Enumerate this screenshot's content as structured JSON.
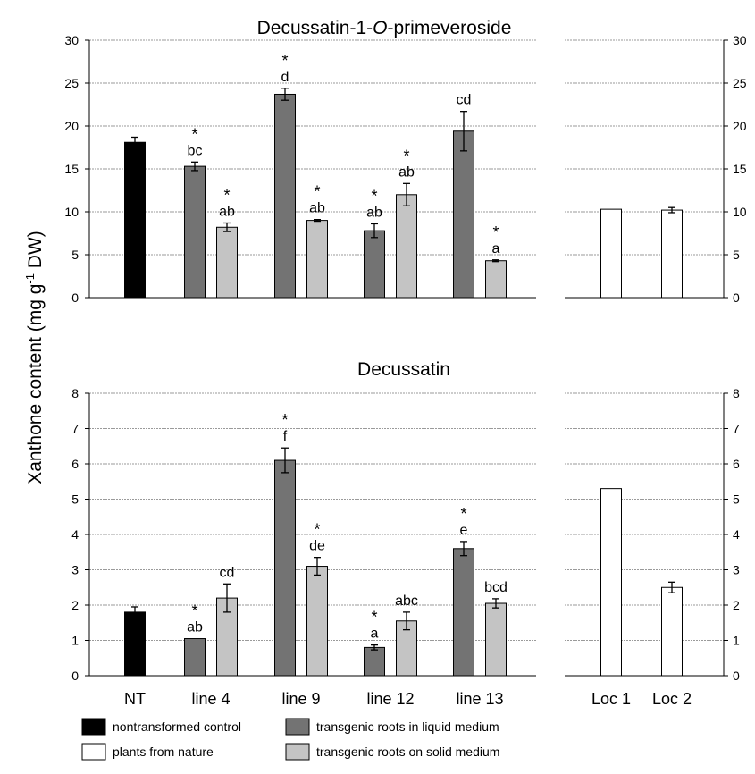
{
  "ylabel_main": "Xanthone content (mg g",
  "ylabel_sup": "-1",
  "ylabel_tail": " DW)",
  "title_top_prefix": "Decussatin-1-",
  "title_top_italic": "O",
  "title_top_suffix": "-primeveroside",
  "legend": [
    {
      "key": "nontransformed",
      "label": "nontransformed control",
      "color": "#000000"
    },
    {
      "key": "nature",
      "label": "plants from nature",
      "color": "#ffffff"
    },
    {
      "key": "liquid",
      "label": "transgenic roots in liquid medium",
      "color": "#737373"
    },
    {
      "key": "solid",
      "label": "transgenic roots on solid medium",
      "color": "#c4c4c4"
    }
  ],
  "chart_data": [
    {
      "type": "bar",
      "title": "Decussatin-1-O-primeveroside",
      "ylim": [
        0,
        30
      ],
      "yticks": [
        "0",
        "5",
        "10",
        "15",
        "20",
        "25",
        "30"
      ],
      "grid": true,
      "categories": [
        "NT",
        "line 4",
        "line 9",
        "line 12",
        "line 13"
      ],
      "nature_categories": [
        "Loc 1",
        "Loc 2"
      ],
      "bars": [
        {
          "group": "NT",
          "series": "nontransformed",
          "value": 18.1,
          "err": 0.6,
          "label": ""
        },
        {
          "group": "line 4",
          "series": "liquid",
          "value": 15.3,
          "err": 0.5,
          "label": "*\nbc"
        },
        {
          "group": "line 4",
          "series": "solid",
          "value": 8.2,
          "err": 0.5,
          "label": "*\nab"
        },
        {
          "group": "line 9",
          "series": "liquid",
          "value": 23.7,
          "err": 0.7,
          "label": "*\nd"
        },
        {
          "group": "line 9",
          "series": "solid",
          "value": 9.0,
          "err": 0.1,
          "label": "*\nab"
        },
        {
          "group": "line 12",
          "series": "liquid",
          "value": 7.8,
          "err": 0.8,
          "label": "*\nab"
        },
        {
          "group": "line 12",
          "series": "solid",
          "value": 12.0,
          "err": 1.3,
          "label": "*\nab"
        },
        {
          "group": "line 13",
          "series": "liquid",
          "value": 19.4,
          "err": 2.3,
          "label": "cd"
        },
        {
          "group": "line 13",
          "series": "solid",
          "value": 4.3,
          "err": 0.1,
          "label": "*\na"
        }
      ],
      "nature_bars": [
        {
          "group": "Loc 1",
          "value": 10.3,
          "err": 0
        },
        {
          "group": "Loc 2",
          "value": 10.2,
          "err": 0.3
        }
      ]
    },
    {
      "type": "bar",
      "title": "Decussatin",
      "ylim": [
        0,
        8
      ],
      "yticks": [
        "0",
        "1",
        "2",
        "3",
        "4",
        "5",
        "6",
        "7",
        "8"
      ],
      "grid": true,
      "categories": [
        "NT",
        "line 4",
        "line 9",
        "line 12",
        "line 13"
      ],
      "nature_categories": [
        "Loc 1",
        "Loc 2"
      ],
      "bars": [
        {
          "group": "NT",
          "series": "nontransformed",
          "value": 1.8,
          "err": 0.15,
          "label": ""
        },
        {
          "group": "line 4",
          "series": "liquid",
          "value": 1.05,
          "err": 0,
          "label": "*\nab"
        },
        {
          "group": "line 4",
          "series": "solid",
          "value": 2.2,
          "err": 0.4,
          "label": "cd"
        },
        {
          "group": "line 9",
          "series": "liquid",
          "value": 6.1,
          "err": 0.35,
          "label": "*\nf"
        },
        {
          "group": "line 9",
          "series": "solid",
          "value": 3.1,
          "err": 0.25,
          "label": "*\nde"
        },
        {
          "group": "line 12",
          "series": "liquid",
          "value": 0.8,
          "err": 0.07,
          "label": "*\na"
        },
        {
          "group": "line 12",
          "series": "solid",
          "value": 1.55,
          "err": 0.25,
          "label": "abc"
        },
        {
          "group": "line 13",
          "series": "liquid",
          "value": 3.6,
          "err": 0.2,
          "label": "*\ne"
        },
        {
          "group": "line 13",
          "series": "solid",
          "value": 2.05,
          "err": 0.13,
          "label": "bcd"
        }
      ],
      "nature_bars": [
        {
          "group": "Loc 1",
          "value": 5.3,
          "err": 0
        },
        {
          "group": "Loc 2",
          "value": 2.5,
          "err": 0.15
        }
      ]
    }
  ]
}
